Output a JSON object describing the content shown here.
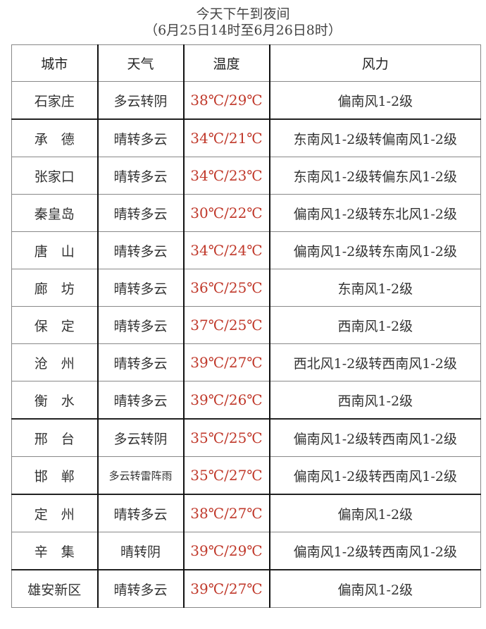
{
  "title": "今天下午到夜间",
  "subtitle": "（6月25日14时至6月26日8时）",
  "headers": [
    "城市",
    "天气",
    "温度",
    "风力"
  ],
  "rows": [
    {
      "city": "石家庄",
      "weather": "多云转阴",
      "temp": "38℃/29℃",
      "wind": "偏南风1-2级"
    },
    {
      "city": "承　德",
      "weather": "晴转多云",
      "temp": "34℃/21℃",
      "wind": "东南风1-2级转偏南风1-2级"
    },
    {
      "city": "张家口",
      "weather": "晴转多云",
      "temp": "34℃/23℃",
      "wind": "东南风1-2级转偏东风1-2级"
    },
    {
      "city": "秦皇岛",
      "weather": "晴转多云",
      "temp": "30℃/22℃",
      "wind": "偏南风1-2级转东北风1-2级"
    },
    {
      "city": "唐　山",
      "weather": "晴转多云",
      "temp": "34℃/24℃",
      "wind": "偏南风1-2级转东南风1-2级"
    },
    {
      "city": "廊　坊",
      "weather": "晴转多云",
      "temp": "36℃/25℃",
      "wind": "东南风1-2级"
    },
    {
      "city": "保　定",
      "weather": "晴转多云",
      "temp": "37℃/25℃",
      "wind": "西南风1-2级"
    },
    {
      "city": "沧　州",
      "weather": "晴转多云",
      "temp": "39℃/27℃",
      "wind": "西北风1-2级转西南风1-2级"
    },
    {
      "city": "衡　水",
      "weather": "晴转多云",
      "temp": "39℃/26℃",
      "wind": "西南风1-2级"
    },
    {
      "city": "邢　台",
      "weather": "多云转阴",
      "temp": "35℃/25℃",
      "wind": "偏南风1-2级转西南风1-2级"
    },
    {
      "city": "邯　郸",
      "weather": "多云转雷阵雨",
      "temp": "35℃/27℃",
      "wind": "偏南风1-2级转西南风1-2级"
    },
    {
      "city": "定　州",
      "weather": "晴转多云",
      "temp": "38℃/27℃",
      "wind": "偏南风1-2级"
    },
    {
      "city": "辛　集",
      "weather": "晴转阴",
      "temp": "39℃/29℃",
      "wind": "偏南风1-2级转西南风1-2级"
    },
    {
      "city": "雄安新区",
      "weather": "晴转多云",
      "temp": "39℃/27℃",
      "wind": "偏南风1-2级"
    }
  ],
  "colors": {
    "temperature": "#c0392b"
  }
}
